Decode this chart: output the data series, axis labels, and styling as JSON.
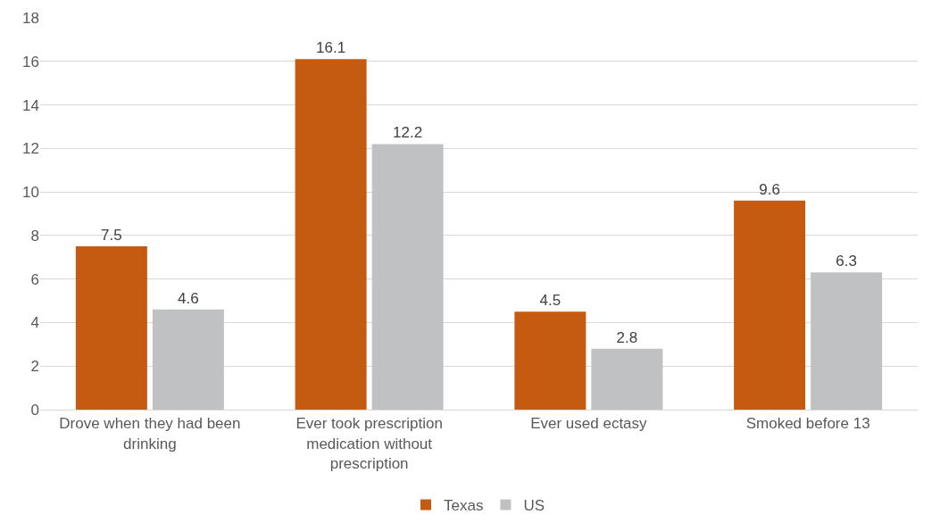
{
  "chart_data": {
    "type": "bar",
    "categories": [
      "Drove when they had been drinking",
      "Ever took prescription medication without prescription",
      "Ever used ectasy",
      "Smoked before 13"
    ],
    "series": [
      {
        "name": "Texas",
        "color": "#c55a11",
        "values": [
          7.5,
          16.1,
          4.5,
          9.6
        ]
      },
      {
        "name": "US",
        "color": "#bfc1c3",
        "values": [
          4.6,
          12.2,
          2.8,
          6.3
        ]
      }
    ],
    "ylim": [
      0,
      18
    ],
    "yticks": [
      0,
      2,
      4,
      6,
      8,
      10,
      12,
      14,
      16,
      18
    ],
    "grid": "y",
    "legend": "bottom",
    "data_labels": true
  }
}
